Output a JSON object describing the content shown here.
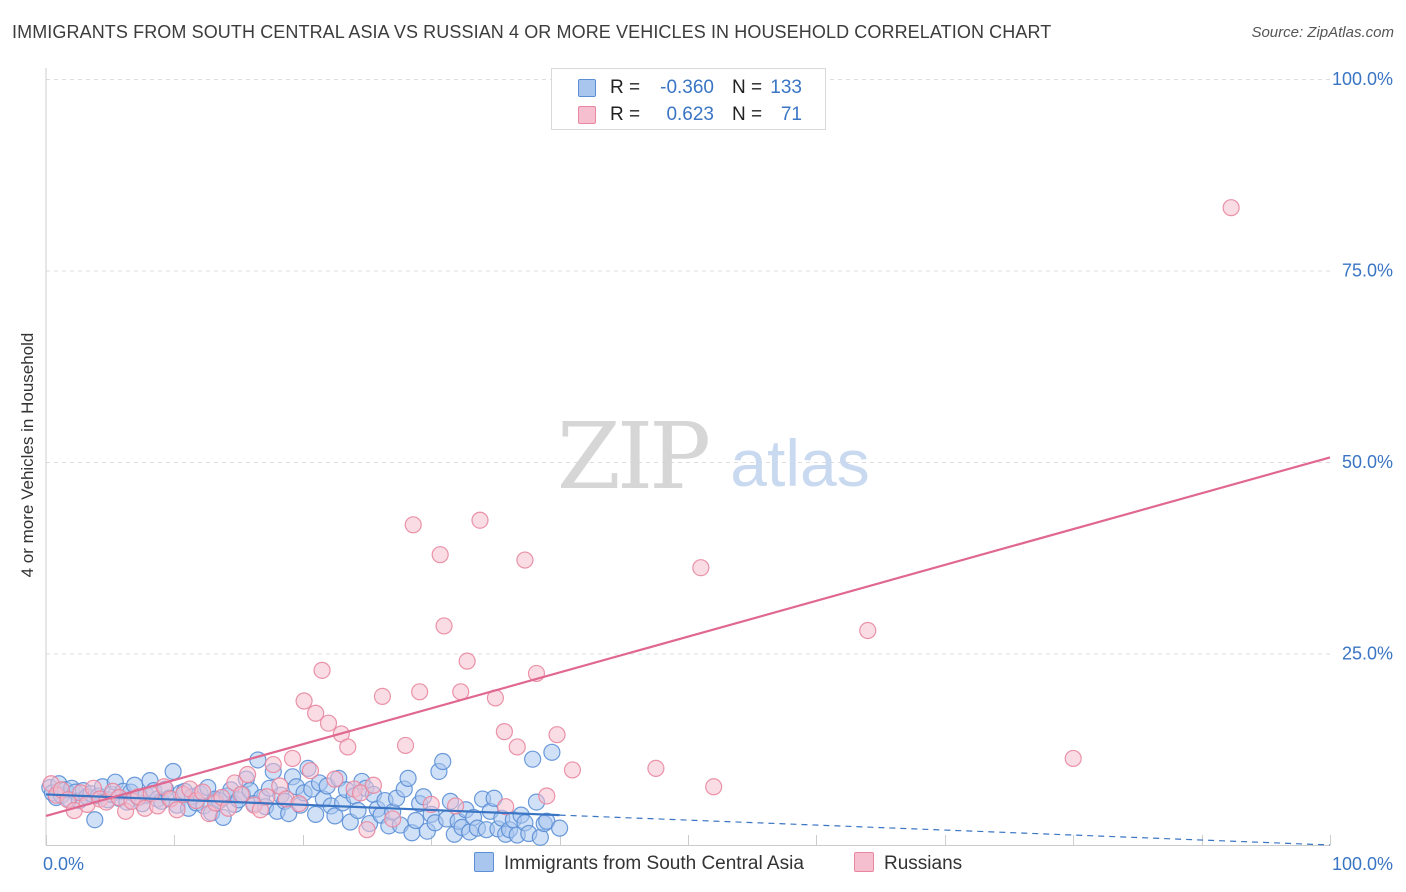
{
  "title": "IMMIGRANTS FROM SOUTH CENTRAL ASIA VS RUSSIAN 4 OR MORE VEHICLES IN HOUSEHOLD CORRELATION CHART",
  "source": "Source: ZipAtlas.com",
  "watermark": {
    "zip": "ZIP",
    "atlas": "atlas"
  },
  "colors": {
    "blue_fill": "#a9c7ee",
    "blue_stroke": "#5b8fd6",
    "blue_line": "#3a75c4",
    "pink_fill": "#f6bfd0",
    "pink_stroke": "#e8879f",
    "pink_line": "#e06890",
    "grid": "#dddddd",
    "axis_text": "#3a75c4"
  },
  "legend_top": {
    "rows": [
      {
        "r_label": "R =",
        "r_value": "-0.360",
        "n_label": "N =",
        "n_value": "133"
      },
      {
        "r_label": "R =",
        "r_value": "0.623",
        "n_label": "N =",
        "n_value": "71"
      }
    ]
  },
  "legend_bottom": {
    "items": [
      {
        "label": "Immigrants from South Central Asia"
      },
      {
        "label": "Russians"
      }
    ]
  },
  "chart_data": {
    "type": "scatter",
    "title": "IMMIGRANTS FROM SOUTH CENTRAL ASIA VS RUSSIAN 4 OR MORE VEHICLES IN HOUSEHOLD CORRELATION CHART",
    "xlabel": "",
    "ylabel": "4 or more Vehicles in Household",
    "xlim": [
      0,
      100
    ],
    "ylim": [
      0,
      100
    ],
    "x_tick_labels": [
      {
        "value": 0,
        "label": "0.0%"
      },
      {
        "value": 100,
        "label": "100.0%"
      }
    ],
    "y_tick_labels": [
      {
        "value": 25,
        "label": "25.0%"
      },
      {
        "value": 50,
        "label": "50.0%"
      },
      {
        "value": 75,
        "label": "75.0%"
      },
      {
        "value": 100,
        "label": "100.0%"
      }
    ],
    "grid": true,
    "legend_position": "top-center",
    "series": [
      {
        "name": "Immigrants from South Central Asia",
        "color": "blue",
        "r": -0.36,
        "n": 133,
        "trend": {
          "x0": 0,
          "y0": 6.6,
          "x1": 40,
          "y1": 3.9,
          "dashed_to_x": 100,
          "dashed_to_y": -0.4
        },
        "points": [
          [
            0.3,
            7.5
          ],
          [
            0.5,
            6.8
          ],
          [
            0.8,
            6.2
          ],
          [
            1.0,
            8.0
          ],
          [
            1.2,
            6.5
          ],
          [
            1.5,
            7.2
          ],
          [
            1.8,
            6.0
          ],
          [
            2.0,
            7.4
          ],
          [
            2.3,
            6.9
          ],
          [
            2.6,
            5.8
          ],
          [
            2.9,
            7.1
          ],
          [
            3.2,
            6.3
          ],
          [
            3.5,
            6.7
          ],
          [
            3.8,
            3.3
          ],
          [
            4.1,
            6.4
          ],
          [
            4.4,
            7.6
          ],
          [
            4.8,
            5.9
          ],
          [
            5.1,
            6.6
          ],
          [
            5.4,
            8.2
          ],
          [
            5.7,
            6.1
          ],
          [
            6.0,
            7.0
          ],
          [
            6.3,
            5.6
          ],
          [
            6.6,
            6.9
          ],
          [
            6.9,
            7.8
          ],
          [
            7.2,
            6.2
          ],
          [
            7.5,
            5.4
          ],
          [
            7.8,
            6.5
          ],
          [
            8.1,
            8.4
          ],
          [
            8.4,
            7.1
          ],
          [
            8.7,
            6.0
          ],
          [
            9.0,
            5.7
          ],
          [
            9.3,
            7.3
          ],
          [
            9.6,
            6.1
          ],
          [
            9.9,
            9.6
          ],
          [
            10.2,
            5.2
          ],
          [
            10.5,
            6.8
          ],
          [
            10.8,
            7.0
          ],
          [
            11.1,
            4.8
          ],
          [
            11.4,
            6.3
          ],
          [
            11.7,
            5.5
          ],
          [
            12.0,
            6.7
          ],
          [
            12.3,
            5.1
          ],
          [
            12.6,
            7.5
          ],
          [
            12.9,
            4.2
          ],
          [
            13.2,
            6.0
          ],
          [
            13.5,
            5.8
          ],
          [
            13.8,
            3.6
          ],
          [
            14.1,
            6.4
          ],
          [
            14.4,
            7.2
          ],
          [
            14.7,
            5.3
          ],
          [
            15.0,
            5.9
          ],
          [
            15.3,
            6.6
          ],
          [
            15.6,
            8.6
          ],
          [
            15.9,
            7.1
          ],
          [
            16.2,
            5.4
          ],
          [
            16.5,
            11.1
          ],
          [
            16.8,
            6.2
          ],
          [
            17.1,
            5.0
          ],
          [
            17.4,
            7.4
          ],
          [
            17.7,
            9.6
          ],
          [
            18.0,
            4.4
          ],
          [
            18.3,
            6.5
          ],
          [
            18.6,
            5.7
          ],
          [
            18.9,
            4.1
          ],
          [
            19.2,
            8.9
          ],
          [
            19.5,
            7.6
          ],
          [
            19.8,
            5.2
          ],
          [
            20.1,
            6.8
          ],
          [
            20.4,
            10.0
          ],
          [
            20.7,
            7.3
          ],
          [
            21.0,
            4.0
          ],
          [
            21.3,
            8.1
          ],
          [
            21.6,
            6.0
          ],
          [
            21.9,
            7.7
          ],
          [
            22.2,
            5.1
          ],
          [
            22.5,
            3.8
          ],
          [
            22.8,
            8.7
          ],
          [
            23.1,
            5.5
          ],
          [
            23.4,
            7.2
          ],
          [
            23.7,
            3.0
          ],
          [
            24.0,
            6.4
          ],
          [
            24.3,
            4.5
          ],
          [
            24.6,
            8.3
          ],
          [
            24.9,
            7.4
          ],
          [
            25.2,
            2.8
          ],
          [
            25.5,
            6.6
          ],
          [
            25.8,
            4.7
          ],
          [
            26.1,
            3.9
          ],
          [
            26.4,
            5.8
          ],
          [
            26.7,
            2.5
          ],
          [
            27.0,
            4.3
          ],
          [
            27.3,
            6.1
          ],
          [
            27.6,
            2.6
          ],
          [
            27.9,
            7.3
          ],
          [
            28.2,
            8.7
          ],
          [
            28.5,
            1.6
          ],
          [
            28.8,
            3.2
          ],
          [
            29.1,
            5.4
          ],
          [
            29.4,
            6.3
          ],
          [
            29.7,
            1.8
          ],
          [
            30.0,
            4.0
          ],
          [
            30.3,
            2.9
          ],
          [
            30.6,
            9.6
          ],
          [
            30.9,
            10.9
          ],
          [
            31.2,
            3.4
          ],
          [
            31.5,
            5.7
          ],
          [
            31.8,
            1.4
          ],
          [
            32.1,
            3.1
          ],
          [
            32.4,
            2.3
          ],
          [
            32.7,
            4.6
          ],
          [
            33.0,
            1.7
          ],
          [
            33.3,
            3.6
          ],
          [
            33.6,
            2.2
          ],
          [
            34.0,
            6.0
          ],
          [
            34.3,
            2.0
          ],
          [
            34.6,
            4.4
          ],
          [
            34.9,
            6.1
          ],
          [
            35.2,
            2.1
          ],
          [
            35.5,
            3.5
          ],
          [
            35.8,
            1.4
          ],
          [
            36.1,
            2.0
          ],
          [
            36.4,
            3.3
          ],
          [
            36.7,
            1.3
          ],
          [
            37.0,
            3.9
          ],
          [
            37.3,
            2.9
          ],
          [
            37.6,
            1.5
          ],
          [
            37.9,
            11.2
          ],
          [
            38.2,
            5.6
          ],
          [
            38.5,
            1.0
          ],
          [
            38.8,
            2.8
          ],
          [
            39.0,
            3.1
          ],
          [
            39.4,
            12.1
          ],
          [
            40.0,
            2.2
          ]
        ]
      },
      {
        "name": "Russians",
        "color": "pink",
        "r": 0.623,
        "n": 71,
        "trend": {
          "x0": 0,
          "y0": 3.8,
          "x1": 100,
          "y1": 50.6
        },
        "points": [
          [
            0.4,
            8.0
          ],
          [
            0.8,
            6.5
          ],
          [
            1.2,
            7.2
          ],
          [
            1.7,
            5.9
          ],
          [
            2.2,
            4.5
          ],
          [
            2.7,
            6.8
          ],
          [
            3.2,
            5.3
          ],
          [
            3.7,
            7.4
          ],
          [
            4.2,
            6.0
          ],
          [
            4.7,
            5.6
          ],
          [
            5.2,
            7.0
          ],
          [
            5.7,
            6.2
          ],
          [
            6.2,
            4.4
          ],
          [
            6.7,
            5.7
          ],
          [
            7.2,
            6.3
          ],
          [
            7.7,
            4.8
          ],
          [
            8.2,
            6.7
          ],
          [
            8.7,
            5.1
          ],
          [
            9.2,
            7.6
          ],
          [
            9.7,
            6.0
          ],
          [
            10.2,
            4.6
          ],
          [
            10.7,
            6.6
          ],
          [
            11.2,
            7.3
          ],
          [
            11.7,
            5.8
          ],
          [
            12.2,
            6.9
          ],
          [
            12.7,
            4.1
          ],
          [
            13.2,
            5.5
          ],
          [
            13.7,
            6.2
          ],
          [
            14.2,
            4.8
          ],
          [
            14.7,
            8.1
          ],
          [
            15.2,
            6.6
          ],
          [
            15.7,
            9.2
          ],
          [
            16.2,
            5.2
          ],
          [
            16.7,
            4.6
          ],
          [
            17.2,
            6.3
          ],
          [
            17.7,
            10.5
          ],
          [
            18.2,
            7.7
          ],
          [
            18.7,
            6.0
          ],
          [
            19.2,
            11.3
          ],
          [
            19.7,
            5.4
          ],
          [
            20.1,
            18.8
          ],
          [
            20.6,
            9.7
          ],
          [
            21.0,
            17.2
          ],
          [
            21.5,
            22.8
          ],
          [
            22.0,
            15.9
          ],
          [
            22.5,
            8.6
          ],
          [
            23.0,
            14.5
          ],
          [
            23.5,
            12.8
          ],
          [
            24.0,
            7.3
          ],
          [
            24.5,
            6.8
          ],
          [
            25.0,
            2.0
          ],
          [
            25.5,
            7.8
          ],
          [
            26.2,
            19.4
          ],
          [
            27.0,
            3.4
          ],
          [
            28.0,
            13.0
          ],
          [
            28.6,
            41.8
          ],
          [
            29.1,
            20.0
          ],
          [
            30.0,
            5.3
          ],
          [
            30.7,
            37.9
          ],
          [
            31.0,
            28.6
          ],
          [
            31.9,
            5.1
          ],
          [
            32.3,
            20.0
          ],
          [
            32.8,
            24.0
          ],
          [
            33.8,
            42.4
          ],
          [
            35.0,
            19.2
          ],
          [
            35.7,
            14.8
          ],
          [
            36.7,
            12.8
          ],
          [
            37.3,
            37.2
          ],
          [
            38.2,
            22.4
          ],
          [
            39.8,
            14.4
          ],
          [
            92.3,
            83.2
          ]
        ],
        "extra_points": [
          [
            35.8,
            5.0
          ],
          [
            39.0,
            6.4
          ],
          [
            41.0,
            9.8
          ],
          [
            47.5,
            10.0
          ],
          [
            51.0,
            36.2
          ],
          [
            52.0,
            7.6
          ],
          [
            64.0,
            28.0
          ],
          [
            80.0,
            11.3
          ]
        ]
      }
    ]
  }
}
